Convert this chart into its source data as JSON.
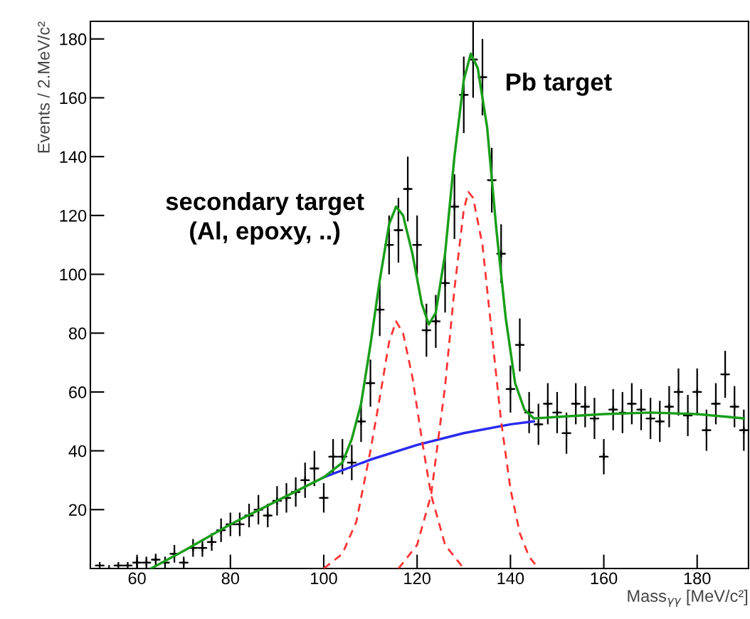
{
  "chart_data": {
    "type": "scatter",
    "xlabel": "Mass$_{γγ}$ [MeV/c²]",
    "ylabel": "Events / 2.MeV/c²",
    "annotations": [
      "secondary target\n(Al, epoxy, ..)",
      "Pb target"
    ],
    "xlim": [
      50,
      191
    ],
    "ylim": [
      0,
      186
    ],
    "xticks": [
      60,
      80,
      100,
      120,
      140,
      160,
      180
    ],
    "yticks": [
      20,
      40,
      60,
      80,
      100,
      120,
      140,
      160,
      180
    ],
    "grid": false,
    "legend": false,
    "series": [
      {
        "color": "#000000",
        "marker": "cross",
        "x": [
          52,
          54,
          56,
          58,
          60,
          62,
          64,
          66,
          68,
          70,
          72,
          74,
          76,
          78,
          80,
          82,
          84,
          86,
          88,
          90,
          92,
          94,
          96,
          98,
          100,
          102,
          104,
          106,
          108,
          110,
          112,
          114,
          116,
          118,
          120,
          122,
          124,
          126,
          128,
          130,
          132,
          134,
          136,
          138,
          140,
          142,
          144,
          146,
          148,
          150,
          152,
          154,
          156,
          158,
          160,
          162,
          164,
          166,
          168,
          170,
          172,
          174,
          176,
          178,
          180,
          182,
          184,
          186,
          188,
          190
        ],
        "values": [
          1,
          0,
          1,
          1,
          2,
          2,
          3,
          2,
          5,
          2,
          7,
          7,
          9,
          13,
          15,
          15,
          18,
          20,
          18,
          23,
          24,
          26,
          30,
          34,
          24,
          38,
          38,
          36,
          50,
          63,
          88,
          110,
          115,
          129,
          110,
          81,
          84,
          97,
          123,
          161,
          173,
          167,
          132,
          107,
          61,
          76,
          53,
          49,
          56,
          53,
          46,
          56,
          55,
          51,
          38,
          54,
          53,
          56,
          54,
          51,
          50,
          55,
          60,
          52,
          60,
          47,
          56,
          66,
          55,
          47
        ],
        "errors": [
          null,
          null,
          null,
          null,
          2,
          2,
          2,
          2,
          3,
          2,
          3,
          3,
          3,
          4,
          4,
          4,
          4,
          5,
          4,
          5,
          5,
          5,
          6,
          6,
          5,
          6,
          6,
          6,
          7,
          8,
          9,
          10,
          11,
          11,
          10,
          9,
          9,
          10,
          11,
          13,
          13,
          13,
          11,
          10,
          8,
          9,
          7,
          7,
          7,
          7,
          7,
          7,
          7,
          7,
          6,
          7,
          7,
          7,
          7,
          7,
          7,
          7,
          8,
          7,
          8,
          7,
          7,
          8,
          7,
          7
        ],
        "xerrors": [
          1,
          null,
          1,
          1,
          1,
          1,
          1,
          1,
          1,
          1,
          1,
          1,
          1,
          1,
          1,
          1,
          1,
          1,
          1,
          1,
          1,
          1,
          1,
          1,
          1,
          1,
          1,
          1,
          1,
          1,
          1,
          1,
          1,
          1,
          1,
          1,
          1,
          1,
          1,
          1,
          1,
          1,
          1,
          1,
          1,
          1,
          1,
          1,
          1,
          1,
          1,
          1,
          1,
          1,
          1,
          1,
          null,
          1,
          1,
          1,
          1,
          1,
          1,
          1,
          1,
          1,
          1,
          1,
          1,
          1
        ]
      },
      {
        "type": "line",
        "color": "#2a2af0",
        "line_style": "solid",
        "x": [
          100,
          110,
          120,
          130,
          140,
          145
        ],
        "values": [
          31,
          37,
          42,
          46,
          49,
          50
        ]
      },
      {
        "type": "line",
        "color": "#ff3333",
        "line_style": "dashed",
        "x": [
          100,
          104,
          107,
          110,
          112,
          114,
          115.5,
          117,
          119,
          121,
          123,
          126,
          130
        ],
        "values": [
          0,
          5,
          16,
          40,
          58,
          77,
          84,
          80,
          65,
          44,
          25,
          8,
          0
        ]
      },
      {
        "type": "line",
        "color": "#ff3333",
        "line_style": "dashed",
        "x": [
          116,
          120,
          123,
          126,
          128,
          130,
          131,
          132,
          134,
          136,
          138,
          140,
          142,
          144,
          146
        ],
        "values": [
          0,
          8,
          25,
          62,
          95,
          122,
          128,
          126,
          110,
          80,
          50,
          27,
          12,
          4,
          0
        ]
      },
      {
        "type": "line",
        "color": "#1a9e1a",
        "line_style": "solid",
        "x": [
          63,
          70,
          80,
          90,
          100,
          104,
          106,
          108,
          110,
          112,
          114,
          115.5,
          117,
          119,
          121,
          122.5,
          124,
          126,
          128,
          130,
          131.5,
          133,
          135,
          137,
          139,
          141,
          143,
          145,
          150,
          160,
          170,
          180,
          190
        ],
        "values": [
          0,
          6,
          15,
          23,
          31,
          36,
          44,
          56,
          76,
          98,
          117,
          123,
          120,
          107,
          90,
          83,
          87,
          107,
          140,
          166,
          175,
          170,
          150,
          115,
          85,
          63,
          54,
          51,
          51.5,
          52.5,
          53,
          52.5,
          51
        ]
      }
    ]
  }
}
